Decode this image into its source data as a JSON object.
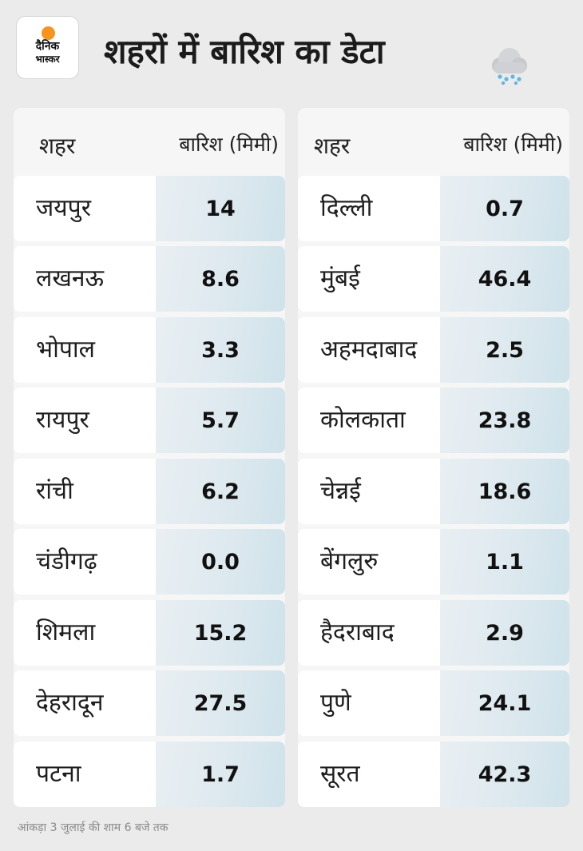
{
  "logo": {
    "line1": "दैनिक",
    "line2": "भास्कर"
  },
  "title": "शहरों में बारिश का डेटा",
  "icons": {
    "weather": "cloud-rain-icon"
  },
  "colors": {
    "sun": "#f7941d",
    "value_bg": "#dde9ef",
    "background": "#ebebeb"
  },
  "table_left": {
    "headers": {
      "city": "शहर",
      "rain": "बारिश (मिमी)"
    },
    "rows": [
      {
        "city": "जयपुर",
        "value": "14"
      },
      {
        "city": "लखनऊ",
        "value": "8.6"
      },
      {
        "city": "भोपाल",
        "value": "3.3"
      },
      {
        "city": "रायपुर",
        "value": "5.7"
      },
      {
        "city": "रांची",
        "value": "6.2"
      },
      {
        "city": "चंडीगढ़",
        "value": "0.0"
      },
      {
        "city": "शिमला",
        "value": "15.2"
      },
      {
        "city": "देहरादून",
        "value": "27.5"
      },
      {
        "city": "पटना",
        "value": "1.7"
      }
    ]
  },
  "table_right": {
    "headers": {
      "city": "शहर",
      "rain": "बारिश (मिमी)"
    },
    "rows": [
      {
        "city": "दिल्ली",
        "value": "0.7"
      },
      {
        "city": "मुंबई",
        "value": "46.4"
      },
      {
        "city": "अहमदाबाद",
        "value": "2.5"
      },
      {
        "city": "कोलकाता",
        "value": "23.8"
      },
      {
        "city": "चेन्नई",
        "value": "18.6"
      },
      {
        "city": "बेंगलुरु",
        "value": "1.1"
      },
      {
        "city": "हैदराबाद",
        "value": "2.9"
      },
      {
        "city": "पुणे",
        "value": "24.1"
      },
      {
        "city": "सूरत",
        "value": "42.3"
      }
    ]
  },
  "footnote": "आंकड़ा 3 जुलाई की शाम 6 बजे तक"
}
